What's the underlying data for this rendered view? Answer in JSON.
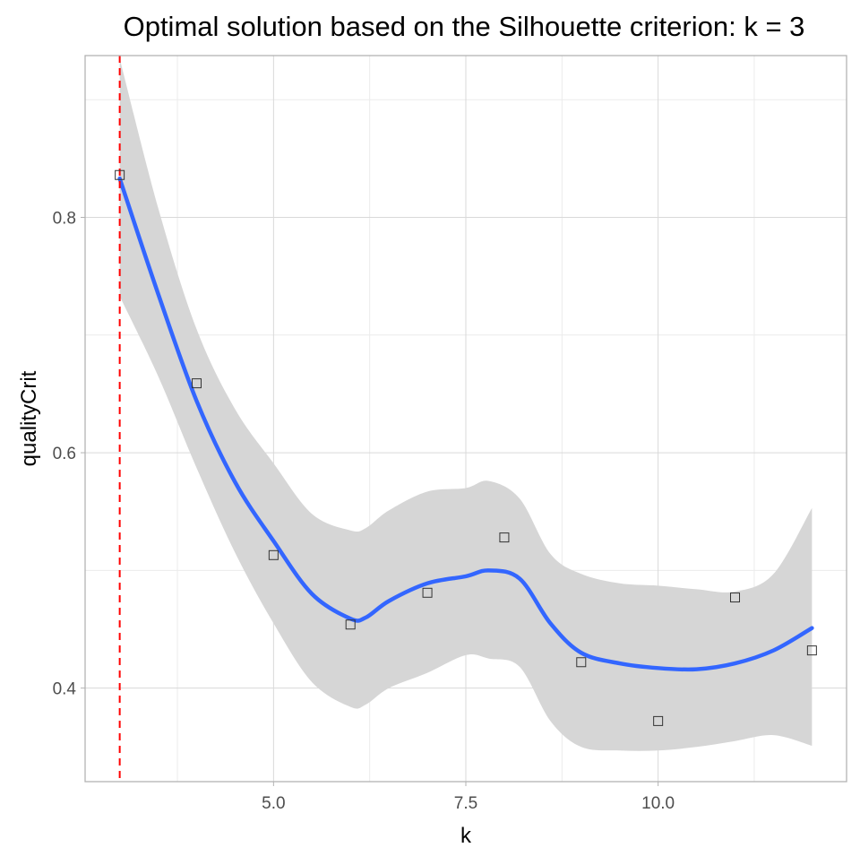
{
  "chart_data": {
    "type": "scatter",
    "title": "Optimal solution based on the Silhouette criterion: k =  3",
    "xlabel": "k",
    "ylabel": "qualityCrit",
    "xlim": [
      2.55,
      12.45
    ],
    "ylim": [
      0.3205,
      0.9375
    ],
    "x_ticks": [
      5.0,
      7.5,
      10.0
    ],
    "x_tick_labels": [
      "5.0",
      "7.5",
      "10.0"
    ],
    "y_ticks": [
      0.4,
      0.6,
      0.8
    ],
    "y_tick_labels": [
      "0.4",
      "0.6",
      "0.8"
    ],
    "grid": true,
    "legend": "none",
    "points": {
      "name": "",
      "x": [
        3,
        4,
        5,
        6,
        7,
        8,
        9,
        10,
        11,
        12
      ],
      "y": [
        0.836,
        0.659,
        0.513,
        0.454,
        0.481,
        0.528,
        0.422,
        0.372,
        0.477,
        0.432
      ],
      "marker": "open-square",
      "color": "#333333"
    },
    "smooth": {
      "name": "",
      "color": "#3366ff",
      "band_color": "#d6d6d6",
      "x": [
        3.0,
        3.5,
        4.0,
        4.5,
        5.0,
        5.5,
        6.0,
        6.2,
        6.5,
        7.0,
        7.5,
        7.8,
        8.2,
        8.6,
        9.0,
        9.5,
        10.0,
        10.5,
        11.0,
        11.5,
        12.0
      ],
      "y": [
        0.833,
        0.735,
        0.644,
        0.575,
        0.525,
        0.48,
        0.459,
        0.46,
        0.474,
        0.489,
        0.495,
        0.5,
        0.493,
        0.455,
        0.43,
        0.421,
        0.417,
        0.416,
        0.421,
        0.432,
        0.451
      ],
      "y_lower": [
        0.733,
        0.665,
        0.587,
        0.515,
        0.455,
        0.405,
        0.384,
        0.386,
        0.4,
        0.413,
        0.428,
        0.425,
        0.418,
        0.372,
        0.35,
        0.347,
        0.347,
        0.35,
        0.355,
        0.36,
        0.351
      ],
      "y_upper": [
        0.935,
        0.808,
        0.705,
        0.637,
        0.591,
        0.548,
        0.534,
        0.536,
        0.551,
        0.567,
        0.57,
        0.576,
        0.561,
        0.514,
        0.497,
        0.489,
        0.487,
        0.484,
        0.482,
        0.497,
        0.553
      ]
    },
    "vline": {
      "x": 3,
      "color": "#ff0000",
      "style": "dashed"
    },
    "panel_background": "#ffffff",
    "grid_color": "#d9d9d9",
    "border_color": "#b3b3b3"
  }
}
